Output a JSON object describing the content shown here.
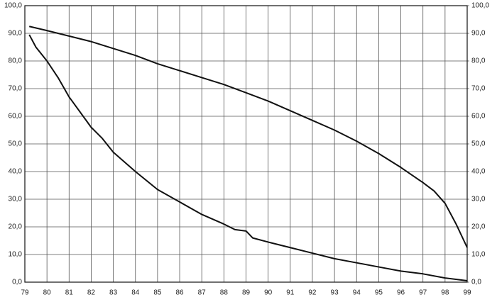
{
  "chart_data": {
    "type": "line",
    "xlim": [
      79,
      99
    ],
    "xticks": [
      79,
      80,
      81,
      82,
      83,
      84,
      85,
      86,
      87,
      88,
      89,
      90,
      91,
      92,
      93,
      94,
      95,
      96,
      97,
      98,
      99
    ],
    "ylim": [
      0,
      100
    ],
    "yticks": [
      {
        "value": 0,
        "label": "0,0"
      },
      {
        "value": 10,
        "label": "10,0"
      },
      {
        "value": 20,
        "label": "20,0"
      },
      {
        "value": 30,
        "label": "30,0"
      },
      {
        "value": 40,
        "label": "40,0"
      },
      {
        "value": 50,
        "label": "50,0"
      },
      {
        "value": 60,
        "label": "60,0"
      },
      {
        "value": 70,
        "label": "70,0"
      },
      {
        "value": 80,
        "label": "80,0"
      },
      {
        "value": 90,
        "label": "90,0"
      },
      {
        "value": 100,
        "label": "100,0"
      }
    ],
    "y2lim": [
      0,
      100
    ],
    "y2ticks": [
      {
        "value": 0,
        "label": "0,0"
      },
      {
        "value": 10,
        "label": "10,0"
      },
      {
        "value": 20,
        "label": "20,0"
      },
      {
        "value": 30,
        "label": "30,0"
      },
      {
        "value": 40,
        "label": "40,0"
      },
      {
        "value": 50,
        "label": "50,0"
      },
      {
        "value": 60,
        "label": "60,0"
      },
      {
        "value": 70,
        "label": "70,0"
      },
      {
        "value": 80,
        "label": "80,0"
      },
      {
        "value": 90,
        "label": "90,0"
      },
      {
        "value": 100,
        "label": "100,0"
      }
    ],
    "grid": true,
    "series": [
      {
        "color": "#111111",
        "x": [
          79.2,
          80,
          81,
          82,
          83,
          84,
          85,
          86,
          87,
          88,
          89,
          90,
          91,
          92,
          93,
          94,
          95,
          96,
          97,
          97.5,
          98,
          98.5,
          99
        ],
        "values": [
          92.5,
          91,
          89,
          87,
          84.5,
          82,
          79,
          76.5,
          74,
          71.5,
          68.5,
          65.5,
          62,
          58.5,
          55,
          51,
          46.5,
          41.5,
          36,
          33,
          28.5,
          21,
          12.5
        ]
      },
      {
        "color": "#111111",
        "x": [
          79.2,
          79.5,
          80,
          80.5,
          81,
          82,
          82.5,
          83,
          84,
          85,
          86,
          87,
          88,
          88.5,
          89,
          89.3,
          90,
          91,
          92,
          93,
          94,
          95,
          96,
          97,
          98,
          99
        ],
        "values": [
          89.5,
          85,
          80,
          74,
          67,
          56,
          52,
          47,
          40,
          33.5,
          29,
          24.5,
          21,
          19,
          18.5,
          16,
          14.5,
          12.5,
          10.5,
          8.5,
          7,
          5.5,
          4,
          3,
          1.5,
          0.5
        ]
      }
    ]
  }
}
